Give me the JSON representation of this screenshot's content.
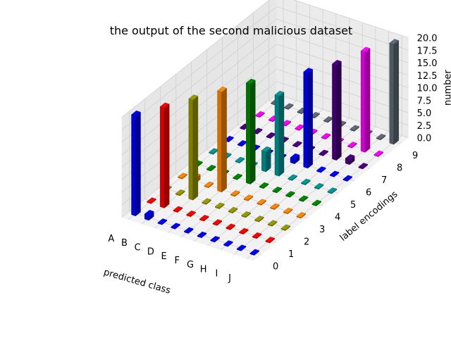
{
  "chart_data": {
    "type": "bar3d",
    "title": "the output of the second malicious dataset",
    "xlabel": "predicted class",
    "ylabel": "label encodings",
    "zlabel": "number",
    "x_categories": [
      "A",
      "B",
      "C",
      "D",
      "E",
      "F",
      "G",
      "H",
      "I",
      "J"
    ],
    "y_categories": [
      "0",
      "1",
      "2",
      "3",
      "4",
      "5",
      "6",
      "7",
      "8",
      "9"
    ],
    "z_ticks": [
      "0.0",
      "2.5",
      "5.0",
      "7.5",
      "10.0",
      "12.5",
      "15.0",
      "17.5",
      "20.0"
    ],
    "zlim": [
      0,
      20
    ],
    "grid": true,
    "series": [
      {
        "values": [
          20,
          1,
          0,
          0,
          0,
          0,
          0,
          0,
          0,
          0
        ],
        "color": "#0000ff"
      },
      {
        "values": [
          0,
          20,
          0,
          0,
          0,
          0,
          0,
          0,
          0,
          0
        ],
        "color": "#ff0000"
      },
      {
        "values": [
          0,
          0,
          20,
          0,
          0,
          0,
          0,
          0,
          0,
          0
        ],
        "color": "#999900"
      },
      {
        "values": [
          0,
          1,
          0,
          20,
          0,
          0,
          0,
          0,
          0,
          0
        ],
        "color": "#ff8800"
      },
      {
        "values": [
          0,
          0,
          0,
          0,
          20,
          0,
          0,
          0,
          0,
          0
        ],
        "color": "#008800"
      },
      {
        "values": [
          0,
          0,
          0,
          0,
          4,
          16,
          0,
          0,
          0,
          0
        ],
        "color": "#009999"
      },
      {
        "values": [
          0,
          0,
          0,
          0,
          0,
          1,
          19,
          0,
          0,
          0
        ],
        "color": "#0000ff"
      },
      {
        "values": [
          0,
          0,
          0,
          0,
          0,
          0,
          0,
          19,
          1,
          0
        ],
        "color": "#4b0082"
      },
      {
        "values": [
          0,
          0,
          0,
          0,
          0,
          0,
          0,
          0,
          20,
          0
        ],
        "color": "#ff00ff"
      },
      {
        "values": [
          0,
          0,
          0,
          0,
          0,
          0,
          0,
          0,
          0,
          20
        ],
        "color": "#5f6b78"
      }
    ]
  }
}
